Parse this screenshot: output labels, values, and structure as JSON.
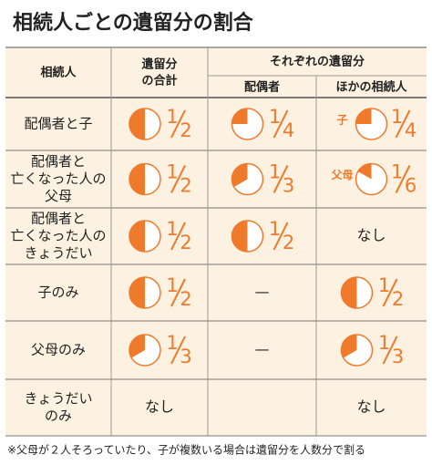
{
  "title": "相続人ごとの遺留分の割合",
  "table": {
    "header": {
      "heir": "相続人",
      "total": [
        "遺留分",
        "の合計"
      ],
      "each": "それぞれの遺留分",
      "spouse": "配偶者",
      "others": "ほかの相続人"
    },
    "rows": [
      {
        "heir": [
          "配偶者と子"
        ],
        "total": {
          "numerator": 1,
          "denominator": 2
        },
        "spouse": {
          "numerator": 1,
          "denominator": 4
        },
        "others": {
          "label": "子",
          "numerator": 1,
          "denominator": 4
        }
      },
      {
        "heir": [
          "配偶者と",
          "亡くなった人の",
          "父母"
        ],
        "total": {
          "numerator": 1,
          "denominator": 2
        },
        "spouse": {
          "numerator": 1,
          "denominator": 3
        },
        "others": {
          "label": "父母",
          "numerator": 1,
          "denominator": 6
        }
      },
      {
        "heir": [
          "配偶者と",
          "亡くなった人の",
          "きょうだい"
        ],
        "total": {
          "numerator": 1,
          "denominator": 2
        },
        "spouse": {
          "numerator": 1,
          "denominator": 2
        },
        "others": {
          "text": "なし"
        }
      },
      {
        "heir": [
          "子のみ"
        ],
        "total": {
          "numerator": 1,
          "denominator": 2
        },
        "spouse": {
          "text": "—"
        },
        "others": {
          "numerator": 1,
          "denominator": 2
        }
      },
      {
        "heir": [
          "父母のみ"
        ],
        "total": {
          "numerator": 1,
          "denominator": 3
        },
        "spouse": {
          "text": "—"
        },
        "others": {
          "numerator": 1,
          "denominator": 3
        }
      },
      {
        "heir": [
          "きょうだい",
          "のみ"
        ],
        "total": {
          "text": "なし"
        },
        "spouse": null,
        "others": {
          "text": "なし"
        }
      }
    ]
  },
  "note": "※父母が２人そろっていたり、子が複数いる場合は遺留分を人数分で割る"
}
